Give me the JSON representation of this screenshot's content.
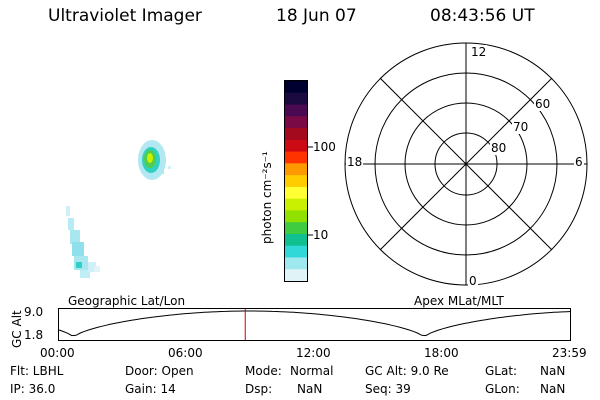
{
  "header": {
    "instrument": "Ultraviolet Imager",
    "date": "18 Jun 07",
    "time": "08:43:56 UT"
  },
  "colorbar": {
    "label": "photon cm⁻²s⁻¹",
    "ticks": [
      "100",
      "10"
    ],
    "colors": [
      "#000030",
      "#1a0a40",
      "#4a0a52",
      "#7a0a46",
      "#a30a1e",
      "#cc0a14",
      "#ff3300",
      "#ff9900",
      "#ffcc00",
      "#ffff33",
      "#c8f000",
      "#90e000",
      "#40cc40",
      "#10c090",
      "#30d8d8",
      "#a0e8f0",
      "#e0f4f8"
    ]
  },
  "polar": {
    "labels": {
      "top": "12",
      "bottom": "0",
      "left": "18",
      "right": "6"
    },
    "rings": [
      "60",
      "70",
      "80"
    ]
  },
  "timeline": {
    "left_label": "Geographic Lat/Lon",
    "right_label": "Apex MLat/MLT",
    "axis_title": "GC Alt",
    "y_ticks": [
      "9.0",
      "1.8"
    ],
    "x_ticks": [
      "00:00",
      "06:00",
      "12:00",
      "18:00",
      "23:59"
    ],
    "marker_time_hours": 8.73,
    "marker_color": "#cc0000"
  },
  "info": {
    "filter": "Flt: LBHL",
    "ip": "IP: 36.0",
    "door": "Door: Open",
    "gain": "Gain: 14",
    "mode_label": "Mode:",
    "mode_value": "Normal",
    "dsp_label": "Dsp:",
    "dsp_value": "NaN",
    "gcalt": "GC Alt: 9.0 Re",
    "seq": "Seq: 39",
    "glat_label": "GLat:",
    "glat_value": "NaN",
    "glon_label": "GLon:",
    "glon_value": "NaN"
  }
}
